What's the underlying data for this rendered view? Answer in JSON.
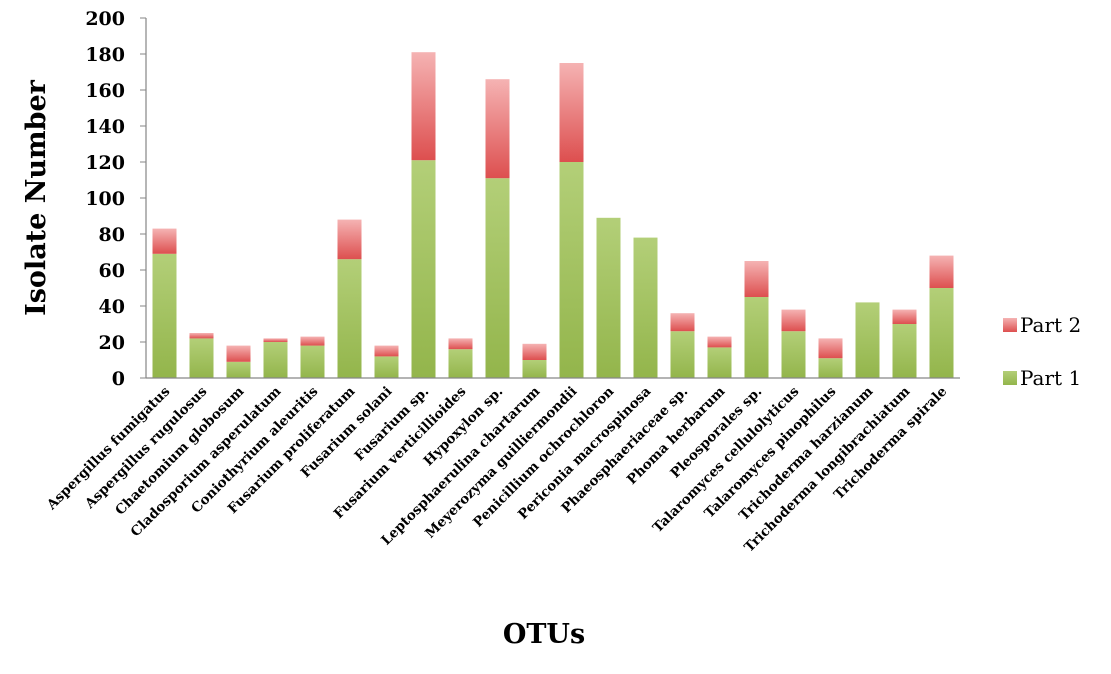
{
  "colors": {
    "part1_top": "#b3cf78",
    "part1_bottom": "#93b54b",
    "part2_top": "#f5b3b3",
    "part2_bottom": "#dd4f4f",
    "axis": "#868686"
  },
  "chart_data": {
    "type": "bar",
    "stacked": true,
    "title": "",
    "xlabel": "OTUs",
    "ylabel": "Isolate Number",
    "ylim": [
      0,
      200
    ],
    "yticks": [
      0,
      20,
      40,
      60,
      80,
      100,
      120,
      140,
      160,
      180,
      200
    ],
    "grid": false,
    "legend_position": "right",
    "categories": [
      "Aspergillus fumigatus",
      "Aspergillus rugulosus",
      "Chaetomium globosum",
      "Cladosporium asperulatum",
      "Coniothyrium aleuritis",
      "Fusarium proliferatum",
      "Fusarium solani",
      "Fusarium sp.",
      "Fusarium verticillioides",
      "Hypoxylon sp.",
      "Leptosphaerulina chartarum",
      "Meyerozyma guilliermondii",
      "Penicillium ochrochloron",
      "Periconia macrospinosa",
      "Phaeosphaeriaceae sp.",
      "Phoma herbarum",
      "Pleosporales sp.",
      "Talaromyces cellulolyticus",
      "Talaromyces pinophilus",
      "Trichoderma harzianum",
      "Trichoderma longibrachiatum",
      "Trichoderma spirale"
    ],
    "series": [
      {
        "name": "Part 1",
        "values": [
          69,
          22,
          9,
          20,
          18,
          66,
          12,
          121,
          16,
          111,
          10,
          120,
          89,
          78,
          26,
          17,
          45,
          26,
          11,
          42,
          30,
          50
        ]
      },
      {
        "name": "Part 2",
        "values": [
          14,
          3,
          9,
          2,
          5,
          22,
          6,
          60,
          6,
          55,
          9,
          55,
          0,
          0,
          10,
          6,
          20,
          12,
          11,
          0,
          8,
          18
        ]
      }
    ],
    "legend": [
      "Part 2",
      "Part 1"
    ]
  }
}
